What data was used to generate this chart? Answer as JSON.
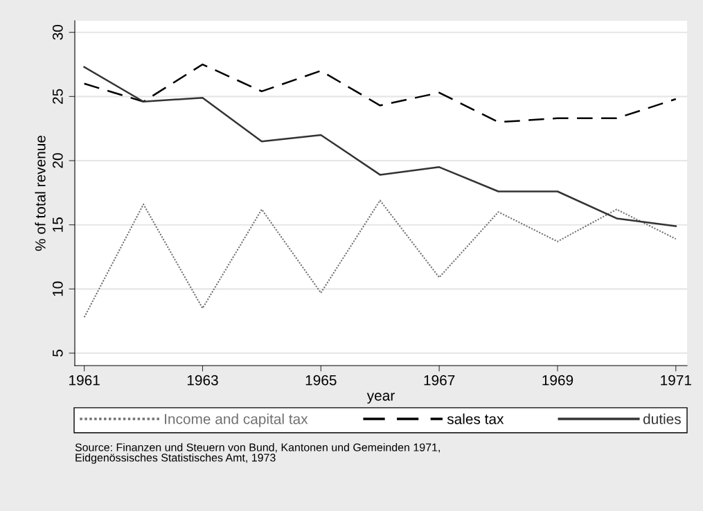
{
  "chart_data": {
    "type": "line",
    "xlabel": "year",
    "ylabel": "% of total revenue",
    "x": [
      1961,
      1962,
      1963,
      1964,
      1965,
      1966,
      1967,
      1968,
      1969,
      1970,
      1971
    ],
    "series": [
      {
        "name": "Income and capital tax",
        "color": "#707070",
        "line_style": "dotted",
        "values": [
          7.8,
          16.6,
          8.5,
          16.2,
          9.7,
          16.9,
          10.9,
          16.0,
          13.7,
          16.2,
          13.9
        ]
      },
      {
        "name": "sales tax",
        "color": "#000000",
        "line_style": "dashed",
        "values": [
          26.0,
          24.6,
          27.5,
          25.4,
          27.0,
          24.3,
          25.3,
          23.0,
          23.3,
          23.3,
          24.8
        ]
      },
      {
        "name": "duties",
        "color": "#333333",
        "line_style": "solid",
        "values": [
          27.3,
          24.6,
          24.9,
          21.5,
          22.0,
          18.9,
          19.5,
          17.6,
          17.6,
          15.5,
          14.9
        ]
      }
    ],
    "xlim": [
      1960.84,
      1971.19
    ],
    "ylim": [
      4.03,
      30.9
    ],
    "xticks": [
      1961,
      1963,
      1965,
      1967,
      1969,
      1971
    ],
    "yticks": [
      5,
      10,
      15,
      20,
      25,
      30
    ],
    "grid": "y",
    "legend": "bottom",
    "marker": "none",
    "annotations": [
      "Source: Finanzen und Steuern von Bund, Kantonen und Gemeinden 1971,\nEidgenössisches Statistisches Amt, 1973"
    ]
  }
}
